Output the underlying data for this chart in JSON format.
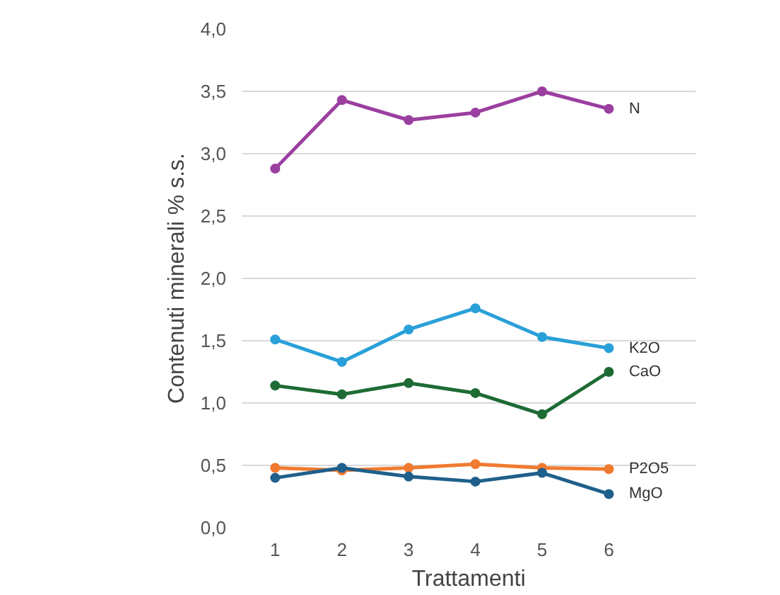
{
  "chart_data": {
    "type": "line",
    "xlabel": "Trattamenti",
    "ylabel": "Contenuti minerali % s.s.",
    "categories": [
      "1",
      "2",
      "3",
      "4",
      "5",
      "6"
    ],
    "series": [
      {
        "name": "N",
        "color": "#9b3fa0",
        "values": [
          2.88,
          3.43,
          3.27,
          3.33,
          3.5,
          3.36
        ]
      },
      {
        "name": "K2O",
        "color": "#2aa0d8",
        "values": [
          1.51,
          1.33,
          1.59,
          1.76,
          1.53,
          1.44
        ]
      },
      {
        "name": "CaO",
        "color": "#1e6b35",
        "values": [
          1.14,
          1.07,
          1.16,
          1.08,
          0.91,
          1.25
        ]
      },
      {
        "name": "P2O5",
        "color": "#f07a30",
        "values": [
          0.48,
          0.46,
          0.48,
          0.51,
          0.48,
          0.47
        ]
      },
      {
        "name": "MgO",
        "color": "#1f5f8b",
        "values": [
          0.4,
          0.48,
          0.41,
          0.37,
          0.44,
          0.27
        ]
      }
    ],
    "ylim": [
      0,
      4
    ],
    "yticks": [
      {
        "value": 0,
        "label": "0,0"
      },
      {
        "value": 0.5,
        "label": "0,5"
      },
      {
        "value": 1,
        "label": "1,0"
      },
      {
        "value": 1.5,
        "label": "1,5"
      },
      {
        "value": 2,
        "label": "2,0"
      },
      {
        "value": 2.5,
        "label": "2,5"
      },
      {
        "value": 3,
        "label": "3,0"
      },
      {
        "value": 3.5,
        "label": "3,5"
      },
      {
        "value": 4,
        "label": "4,0"
      }
    ],
    "grid": "y",
    "marker": "circle",
    "line_style": "solid"
  }
}
